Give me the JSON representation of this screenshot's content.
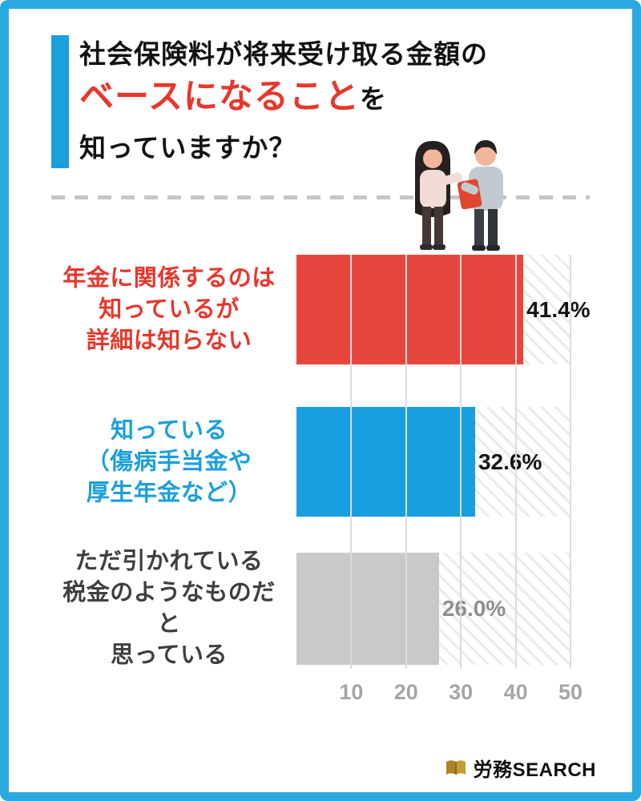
{
  "frame": {
    "border_color": "#2aa9e0"
  },
  "title": {
    "line1": "社会保険料が将来受け取る金額の",
    "highlight": "ベースになること",
    "suffix": "を",
    "line2": "知っていますか？",
    "accent_bar_color": "#1b9fdd",
    "highlight_color": "#e8372c"
  },
  "chart_data": {
    "type": "bar",
    "orientation": "horizontal",
    "title": "社会保険料が将来受け取る金額のベースになることを知っていますか？",
    "xlim": [
      0,
      50
    ],
    "x_ticks": [
      "10",
      "20",
      "30",
      "40",
      "50"
    ],
    "grid": true,
    "unit": "%",
    "categories": [
      {
        "lines": [
          "年金に関係するのは",
          "知っているが",
          "詳細は知らない"
        ],
        "label_color": "#e8372c"
      },
      {
        "lines": [
          "知っている",
          "（傷病手当金や",
          "厚生年金など）"
        ],
        "label_color": "#1b9fdd"
      },
      {
        "lines": [
          "ただ引かれている",
          "税金のようなものだと",
          "思っている"
        ],
        "label_color": "#3f3f3f"
      }
    ],
    "values": [
      41.4,
      32.6,
      26.0
    ],
    "value_labels": [
      "41.4%",
      "32.6%",
      "26.0%"
    ],
    "bar_colors": [
      "#e8463c",
      "#189fe0",
      "#c9c9c9"
    ],
    "value_label_colors": [
      "#141414",
      "#141414",
      "#8f8f8f"
    ]
  },
  "footer": {
    "logo_bold": "労務",
    "logo_rest": "SEARCH"
  }
}
